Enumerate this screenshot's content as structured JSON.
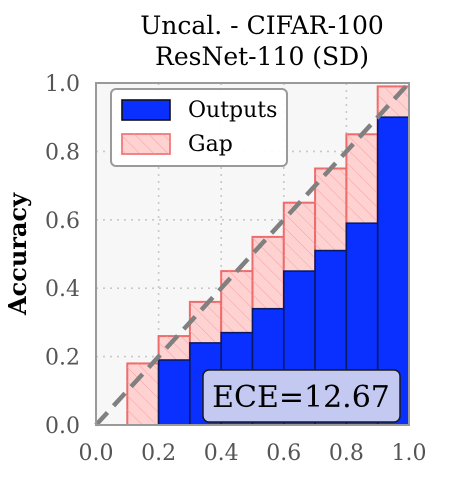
{
  "chart_data": {
    "type": "bar",
    "title": [
      "Uncal. - CIFAR-100",
      "ResNet-110 (SD)"
    ],
    "xlabel": "",
    "ylabel": "Accuracy",
    "xlim": [
      0.0,
      1.0
    ],
    "ylim": [
      0.0,
      1.0
    ],
    "xticks": [
      "0.0",
      "0.2",
      "0.4",
      "0.6",
      "0.8",
      "1.0"
    ],
    "yticks": [
      "0.0",
      "0.2",
      "0.4",
      "0.6",
      "0.8",
      "1.0"
    ],
    "grid": true,
    "bins": [
      0.0,
      0.1,
      0.2,
      0.3,
      0.4,
      0.5,
      0.6,
      0.7,
      0.8,
      0.9
    ],
    "bin_width": 0.1,
    "series": [
      {
        "name": "Outputs",
        "color": "#0a30ff",
        "values": [
          0.0,
          0.0,
          0.19,
          0.24,
          0.27,
          0.34,
          0.45,
          0.51,
          0.59,
          0.9
        ]
      },
      {
        "name": "Gap",
        "color": "#ffd2d2",
        "edge_color": "#ee6b6b",
        "values": [
          0.0,
          0.18,
          0.26,
          0.36,
          0.45,
          0.55,
          0.65,
          0.75,
          0.85,
          0.99
        ]
      }
    ],
    "diagonal": true,
    "legend_position": "top-left",
    "annotation": "ECE=12.67"
  }
}
